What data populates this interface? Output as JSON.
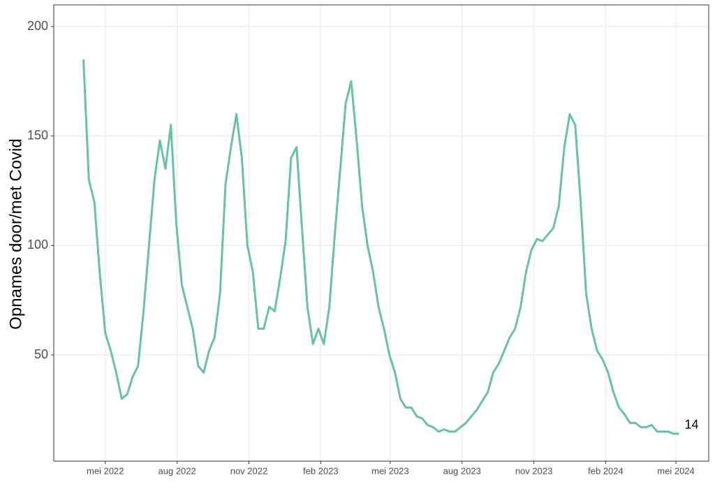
{
  "chart_data": {
    "type": "line",
    "y_label": "Opnames door/met Covid",
    "x": [
      "2022-04-03",
      "2022-04-10",
      "2022-04-17",
      "2022-04-24",
      "2022-05-01",
      "2022-05-08",
      "2022-05-15",
      "2022-05-22",
      "2022-05-29",
      "2022-06-05",
      "2022-06-12",
      "2022-06-19",
      "2022-06-26",
      "2022-07-03",
      "2022-07-10",
      "2022-07-17",
      "2022-07-24",
      "2022-07-31",
      "2022-08-07",
      "2022-08-14",
      "2022-08-21",
      "2022-08-28",
      "2022-09-04",
      "2022-09-11",
      "2022-09-18",
      "2022-09-25",
      "2022-10-02",
      "2022-10-09",
      "2022-10-16",
      "2022-10-23",
      "2022-10-30",
      "2022-11-06",
      "2022-11-13",
      "2022-11-20",
      "2022-11-27",
      "2022-12-04",
      "2022-12-11",
      "2022-12-18",
      "2022-12-25",
      "2023-01-01",
      "2023-01-08",
      "2023-01-15",
      "2023-01-22",
      "2023-01-29",
      "2023-02-05",
      "2023-02-12",
      "2023-02-19",
      "2023-02-26",
      "2023-03-05",
      "2023-03-12",
      "2023-03-19",
      "2023-03-26",
      "2023-04-02",
      "2023-04-09",
      "2023-04-16",
      "2023-04-23",
      "2023-04-30",
      "2023-05-07",
      "2023-05-14",
      "2023-05-21",
      "2023-05-28",
      "2023-06-04",
      "2023-06-11",
      "2023-06-18",
      "2023-06-25",
      "2023-07-02",
      "2023-07-09",
      "2023-07-16",
      "2023-07-23",
      "2023-07-30",
      "2023-08-06",
      "2023-08-13",
      "2023-08-20",
      "2023-08-27",
      "2023-09-03",
      "2023-09-10",
      "2023-09-17",
      "2023-09-24",
      "2023-10-01",
      "2023-10-08",
      "2023-10-15",
      "2023-10-22",
      "2023-10-29",
      "2023-11-05",
      "2023-11-12",
      "2023-11-19",
      "2023-11-26",
      "2023-12-03",
      "2023-12-10",
      "2023-12-17",
      "2023-12-24",
      "2023-12-31",
      "2024-01-07",
      "2024-01-14",
      "2024-01-21",
      "2024-01-28",
      "2024-02-04",
      "2024-02-11",
      "2024-02-18",
      "2024-02-25",
      "2024-03-03",
      "2024-03-10",
      "2024-03-17",
      "2024-03-24",
      "2024-03-31",
      "2024-04-07",
      "2024-04-14",
      "2024-04-21",
      "2024-04-28",
      "2024-05-05"
    ],
    "values": [
      185,
      130,
      120,
      87,
      60,
      52,
      42,
      30,
      32,
      40,
      45,
      70,
      100,
      130,
      148,
      135,
      155,
      110,
      82,
      72,
      62,
      45,
      42,
      52,
      58,
      78,
      128,
      145,
      160,
      140,
      100,
      88,
      62,
      62,
      72,
      70,
      85,
      102,
      140,
      145,
      108,
      72,
      55,
      62,
      55,
      72,
      105,
      135,
      165,
      175,
      148,
      118,
      100,
      88,
      72,
      62,
      50,
      42,
      30,
      26,
      26,
      22,
      21,
      18,
      17,
      15,
      16,
      15,
      15,
      17,
      19,
      22,
      25,
      29,
      33,
      42,
      46,
      52,
      58,
      62,
      72,
      88,
      98,
      103,
      102,
      105,
      108,
      118,
      145,
      160,
      155,
      120,
      78,
      62,
      52,
      48,
      42,
      33,
      26,
      23,
      19,
      19,
      17,
      17,
      18,
      15,
      15,
      15,
      14,
      14
    ],
    "color": "#66c2a5",
    "annotation": {
      "text": "14",
      "x": "2024-05-05",
      "y": 14
    },
    "xlim": [
      "2022-02-24",
      "2024-06-12"
    ],
    "xticks": [
      {
        "value": "2022-05-01",
        "label": "mei 2022"
      },
      {
        "value": "2022-08-01",
        "label": "aug 2022"
      },
      {
        "value": "2022-11-01",
        "label": "nov 2022"
      },
      {
        "value": "2023-02-01",
        "label": "feb 2023"
      },
      {
        "value": "2023-05-01",
        "label": "mei 2023"
      },
      {
        "value": "2023-08-01",
        "label": "aug 2023"
      },
      {
        "value": "2023-11-01",
        "label": "nov 2023"
      },
      {
        "value": "2024-02-01",
        "label": "feb 2024"
      },
      {
        "value": "2024-05-01",
        "label": "mei 2024"
      }
    ],
    "ylim": [
      1.5,
      209.9
    ],
    "yticks": [
      50,
      100,
      150,
      200
    ],
    "grid": true
  }
}
